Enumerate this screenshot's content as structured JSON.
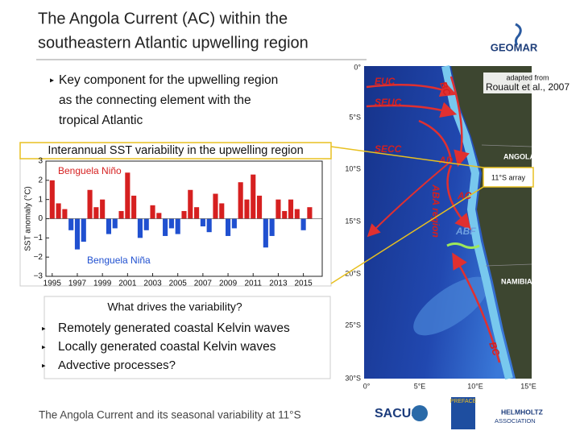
{
  "header": {
    "title_lines": [
      "The Angola Current (AC) within the",
      "southeastern Atlantic upwelling region"
    ],
    "logo": "GEOMAR"
  },
  "bullets_top": [
    "Key component for the upwelling region",
    "as the connecting element with the",
    "tropical Atlantic"
  ],
  "credit": {
    "line1": "adapted from",
    "line2": "Rouault et al., 2007"
  },
  "chart_data": {
    "type": "bar",
    "title": "Interannual SST variability in the upwelling region",
    "y_label": "SST anomaly (°C)",
    "annotations": [
      "Benguela Niño",
      "Benguela Niña"
    ],
    "x": [
      1995.0,
      1995.5,
      1996.0,
      1996.5,
      1997.0,
      1997.5,
      1998.0,
      1998.5,
      1999.0,
      1999.5,
      2000.0,
      2000.5,
      2001.0,
      2001.5,
      2002.0,
      2002.5,
      2003.0,
      2003.5,
      2004.0,
      2004.5,
      2005.0,
      2005.5,
      2006.0,
      2006.5,
      2007.0,
      2007.5,
      2008.0,
      2008.5,
      2009.0,
      2009.5,
      2010.0,
      2010.5,
      2011.0,
      2011.5,
      2012.0,
      2012.5,
      2013.0,
      2013.5,
      2014.0,
      2014.5,
      2015.0,
      2015.5
    ],
    "values": [
      2.0,
      0.8,
      0.5,
      -0.6,
      -1.6,
      -1.2,
      1.5,
      0.6,
      1.0,
      -0.8,
      -0.5,
      0.4,
      2.4,
      1.2,
      -1.0,
      -0.6,
      0.7,
      0.3,
      -0.9,
      -0.5,
      -0.8,
      0.4,
      1.5,
      0.6,
      -0.4,
      -0.7,
      1.3,
      0.8,
      -0.9,
      -0.5,
      1.9,
      1.0,
      2.3,
      1.2,
      -1.5,
      -0.9,
      1.0,
      0.4,
      1.0,
      0.5,
      -0.6,
      0.6
    ],
    "color_positive": "#d62020",
    "color_negative": "#2050d0",
    "xlim": [
      1994.5,
      2016.5
    ],
    "xticks": [
      1995,
      1997,
      1999,
      2001,
      2003,
      2005,
      2007,
      2009,
      2011,
      2013,
      2015
    ],
    "ylim": [
      -3,
      3
    ],
    "yticks": [
      {
        "value": -3,
        "label": "−3"
      },
      {
        "value": -2,
        "label": "−2"
      },
      {
        "value": -1,
        "label": "−1"
      },
      0,
      1,
      2,
      3
    ]
  },
  "question": {
    "title": "What drives the variability?",
    "items": [
      "Remotely generated coastal Kelvin waves",
      "Locally generated coastal Kelvin waves",
      "Advective processes?"
    ]
  },
  "map": {
    "lat_labels": [
      "0°",
      "5°S",
      "10°S",
      "15°S",
      "20°S",
      "25°S",
      "30°S"
    ],
    "lon_labels": [
      "0°",
      "5°E",
      "10°E",
      "15°E"
    ],
    "currents": [
      "EUC",
      "SEUC",
      "SECC",
      "AD",
      "AC",
      "ABA region",
      "ABF",
      "BC",
      "BC"
    ],
    "countries": [
      "ANGOLA",
      "NAMIBIA"
    ],
    "array": "11°S array"
  },
  "footer": {
    "text": "The Angola Current and its seasonal variability at 11°S",
    "logos": [
      "SACUS",
      "PREFACE",
      "HELMHOLTZ",
      "ASSOCIATION"
    ]
  }
}
